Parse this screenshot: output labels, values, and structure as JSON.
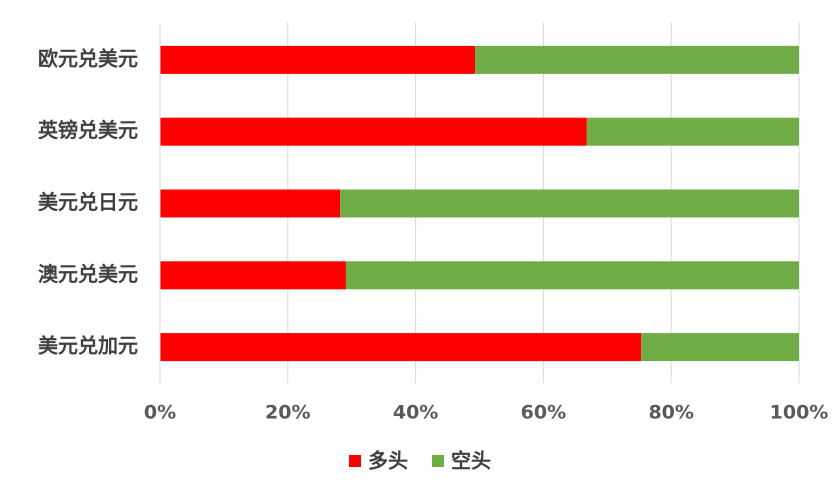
{
  "chart_data": {
    "type": "stacked-bar-horizontal",
    "categories": [
      "欧元兑美元",
      "英镑兑美元",
      "美元兑日元",
      "澳元兑美元",
      "美元兑加元"
    ],
    "series": [
      {
        "name": "多头",
        "color": "#ff0000",
        "values": [
          49.3,
          66.8,
          28.2,
          29.1,
          75.3
        ]
      },
      {
        "name": "空头",
        "color": "#70ad47",
        "values": [
          50.7,
          33.2,
          71.8,
          70.9,
          24.7
        ]
      }
    ],
    "xlim": [
      0,
      100
    ],
    "xticks": [
      {
        "value": 0,
        "label": "0%"
      },
      {
        "value": 20,
        "label": "20%"
      },
      {
        "value": 40,
        "label": "40%"
      },
      {
        "value": 60,
        "label": "60%"
      },
      {
        "value": 80,
        "label": "80%"
      },
      {
        "value": 100,
        "label": "100%"
      }
    ],
    "grid": true,
    "legend": "bottom"
  }
}
